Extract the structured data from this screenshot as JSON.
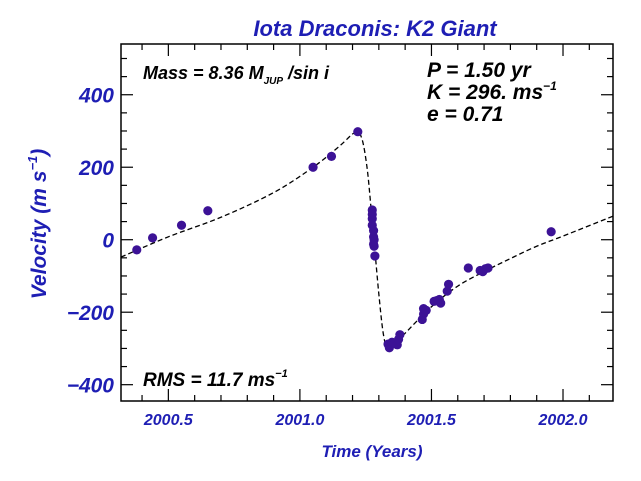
{
  "chart_data": {
    "type": "scatter",
    "title": "Iota Draconis: K2 Giant",
    "xlabel": "Time  (Years)",
    "ylabel_main": "Velocity (m s",
    "ylabel_exp": "−1",
    "ylabel_close": ")",
    "xlim": [
      2000.32,
      2002.19
    ],
    "ylim": [
      -445,
      540
    ],
    "xticks": [
      {
        "value": 2000.5,
        "label": "2000.5"
      },
      {
        "value": 2001.0,
        "label": "2001.0"
      },
      {
        "value": 2001.5,
        "label": "2001.5"
      },
      {
        "value": 2002.0,
        "label": "2002.0"
      }
    ],
    "yticks": [
      {
        "value": 400,
        "label": "400"
      },
      {
        "value": 200,
        "label": "200"
      },
      {
        "value": 0,
        "label": "0"
      },
      {
        "value": -200,
        "label": "−200"
      },
      {
        "value": -400,
        "label": "−400"
      }
    ],
    "annotations": {
      "mass_prefix": "Mass = 8.36 M",
      "mass_sub": "JUP",
      "mass_suffix": " /sin i",
      "period": "P = 1.50 yr",
      "amp_prefix": "K = 296. ms",
      "amp_exp": "−1",
      "ecc": "e = 0.71",
      "rms_prefix": "RMS = 11.7 ms",
      "rms_exp": "−1"
    },
    "colors": {
      "title": "#1e1eb4",
      "axis_labels": "#1e1eb4",
      "points": "#3c1296",
      "fit_line": "#000000",
      "frame": "#000000",
      "annotation_text": "#000000"
    },
    "fit_curve": {
      "style": "dashed",
      "x": [
        2000.32,
        2000.5,
        2000.7,
        2000.9,
        2001.05,
        2001.15,
        2001.21,
        2001.235,
        2001.255,
        2001.27,
        2001.285,
        2001.3,
        2001.315,
        2001.33,
        2001.345,
        2001.36,
        2001.4,
        2001.5,
        2001.6,
        2001.7,
        2001.8,
        2001.9,
        2002.0,
        2002.19
      ],
      "y": [
        -48,
        8,
        62,
        130,
        200,
        258,
        296,
        280,
        200,
        90,
        -30,
        -150,
        -250,
        -300,
        -300,
        -288,
        -258,
        -185,
        -128,
        -88,
        -52,
        -18,
        10,
        65
      ]
    },
    "series": [
      {
        "x": [
          2000.38,
          2000.44,
          2000.55,
          2000.65,
          2001.05,
          2001.12,
          2001.22,
          2001.275,
          2001.275,
          2001.275,
          2001.275,
          2001.28,
          2001.28,
          2001.28,
          2001.282,
          2001.282,
          2001.285,
          2001.335,
          2001.34,
          2001.35,
          2001.36,
          2001.37,
          2001.375,
          2001.38,
          2001.465,
          2001.47,
          2001.47,
          2001.48,
          2001.51,
          2001.52,
          2001.53,
          2001.535,
          2001.56,
          2001.565,
          2001.64,
          2001.685,
          2001.695,
          2001.705,
          2001.715,
          2001.955
        ],
        "y": [
          -28,
          5,
          40,
          80,
          200,
          230,
          298,
          82,
          70,
          58,
          40,
          25,
          8,
          -12,
          0,
          -18,
          -45,
          -288,
          -298,
          -283,
          -285,
          -290,
          -275,
          -262,
          -220,
          -205,
          -190,
          -195,
          -170,
          -168,
          -165,
          -175,
          -142,
          -123,
          -78,
          -85,
          -88,
          -80,
          -78,
          22
        ]
      }
    ]
  }
}
